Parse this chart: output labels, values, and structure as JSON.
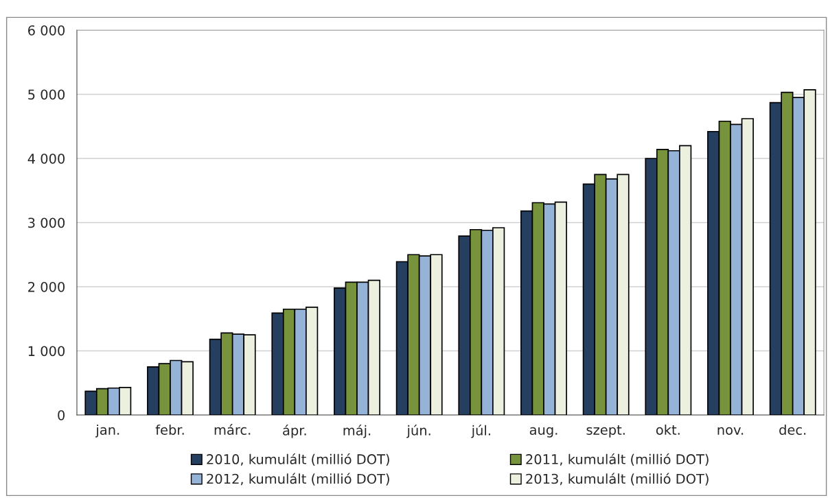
{
  "chart_data": {
    "type": "bar",
    "categories": [
      "jan.",
      "febr.",
      "márc.",
      "ápr.",
      "máj.",
      "jún.",
      "júl.",
      "aug.",
      "szept.",
      "okt.",
      "nov.",
      "dec."
    ],
    "series": [
      {
        "name": "2010, kumulált (millió DOT)",
        "color": "#243f60",
        "values": [
          370,
          750,
          1180,
          1590,
          1980,
          2390,
          2790,
          3180,
          3600,
          4000,
          4420,
          4870
        ]
      },
      {
        "name": "2011, kumulált (millió DOT)",
        "color": "#77933c",
        "values": [
          410,
          800,
          1280,
          1650,
          2070,
          2500,
          2890,
          3310,
          3750,
          4140,
          4580,
          5030
        ]
      },
      {
        "name": "2012, kumulált (millió DOT)",
        "color": "#95b3d7",
        "values": [
          420,
          850,
          1260,
          1650,
          2070,
          2480,
          2880,
          3290,
          3680,
          4120,
          4530,
          4950
        ]
      },
      {
        "name": "2013, kumulált (millió DOT)",
        "color": "#ebf1de",
        "values": [
          430,
          830,
          1250,
          1680,
          2100,
          2500,
          2920,
          3320,
          3750,
          4200,
          4620,
          5070
        ]
      }
    ],
    "ylim": [
      0,
      6000
    ],
    "yticks": [
      {
        "value": 0,
        "label": "0"
      },
      {
        "value": 1000,
        "label": "1 000"
      },
      {
        "value": 2000,
        "label": "2 000"
      },
      {
        "value": 3000,
        "label": "3 000"
      },
      {
        "value": 4000,
        "label": "4 000"
      },
      {
        "value": 5000,
        "label": "5 000"
      },
      {
        "value": 6000,
        "label": "6 000"
      }
    ],
    "grid": "y",
    "legend": "bottom"
  }
}
